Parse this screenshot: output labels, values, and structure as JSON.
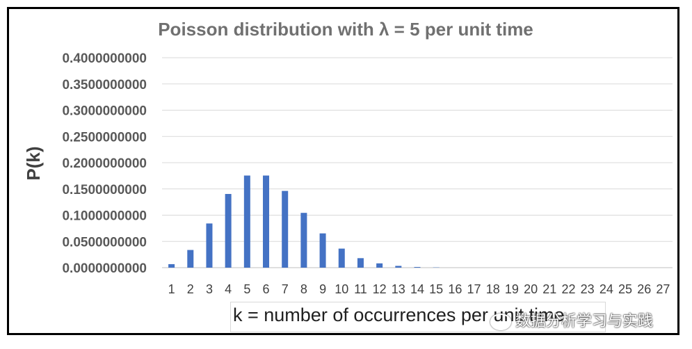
{
  "chart_data": {
    "type": "bar",
    "title": "Poisson distribution with λ = 5 per unit time",
    "xlabel": "k = number of occurrences per unit time",
    "ylabel": "P(k)",
    "categories": [
      "1",
      "2",
      "3",
      "4",
      "5",
      "6",
      "7",
      "8",
      "9",
      "10",
      "11",
      "12",
      "13",
      "14",
      "15",
      "16",
      "17",
      "18",
      "19",
      "20",
      "21",
      "22",
      "23",
      "24",
      "25",
      "26",
      "27"
    ],
    "values": [
      0.0067,
      0.0337,
      0.0842,
      0.1404,
      0.1755,
      0.1755,
      0.1462,
      0.1044,
      0.0653,
      0.0363,
      0.0181,
      0.0082,
      0.0034,
      0.0013,
      0.0005,
      0.0002,
      0.0,
      0.0,
      0.0,
      0.0,
      0.0,
      0.0,
      0.0,
      0.0,
      0.0,
      0.0,
      0.0
    ],
    "ylim": [
      0,
      0.4
    ],
    "yticks": [
      "0.0000000000",
      "0.0500000000",
      "0.1000000000",
      "0.1500000000",
      "0.2000000000",
      "0.2500000000",
      "0.3000000000",
      "0.3500000000",
      "0.4000000000"
    ],
    "grid": true,
    "bar_color": "#4472c4"
  },
  "watermark": "数据分析学习与实践"
}
